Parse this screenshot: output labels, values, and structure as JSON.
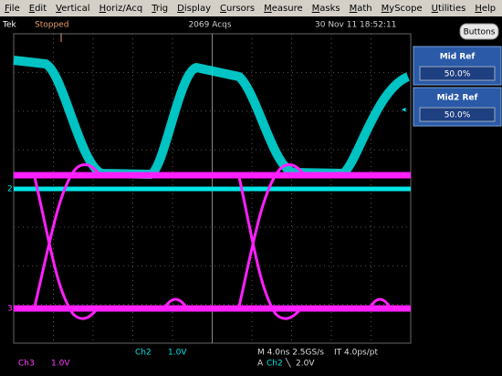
{
  "menu": [
    "File",
    "Edit",
    "Vertical",
    "Horiz/Acq",
    "Trig",
    "Display",
    "Cursors",
    "Measure",
    "Masks",
    "Math",
    "MyScope",
    "Utilities",
    "Help"
  ],
  "status": {
    "brand": "Tek",
    "state": "Stopped",
    "acquisitions": "2069 Acqs",
    "datetime": "30 Nov 11 18:52:11",
    "button": "Buttons"
  },
  "side_panel": [
    {
      "label": "Mid Ref",
      "value": "50.0%"
    },
    {
      "label": "Mid2 Ref",
      "value": "50.0%"
    }
  ],
  "channel_markers": [
    "2",
    "3"
  ],
  "readouts": {
    "ch2_name": "Ch2",
    "ch2_scale": "1.0V",
    "ch3_name": "Ch3",
    "ch3_scale": "1.0V",
    "timebase": "M 4.0ns 2.5GS/s",
    "interval": "IT 4.0ps/pt",
    "trigger_source": "A",
    "trigger_channel": "Ch2",
    "trigger_slope": "╲",
    "trigger_level": "2.0V"
  }
}
